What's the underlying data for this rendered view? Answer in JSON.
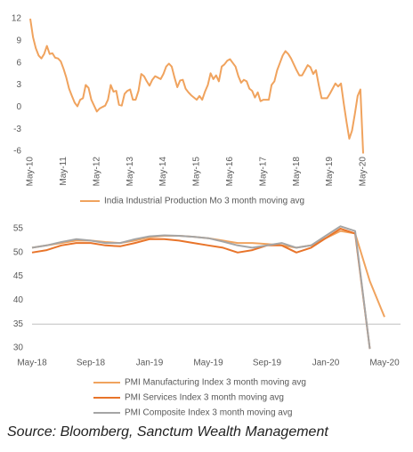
{
  "chart_data": [
    {
      "type": "line",
      "categories": [
        "May-10",
        null,
        null,
        null,
        null,
        null,
        null,
        null,
        null,
        null,
        null,
        null,
        "May-11",
        null,
        null,
        null,
        null,
        null,
        null,
        null,
        null,
        null,
        null,
        null,
        "May-12",
        null,
        null,
        null,
        null,
        null,
        null,
        null,
        null,
        null,
        null,
        null,
        "May-13",
        null,
        null,
        null,
        null,
        null,
        null,
        null,
        null,
        null,
        null,
        null,
        "May-14",
        null,
        null,
        null,
        null,
        null,
        null,
        null,
        null,
        null,
        null,
        null,
        "May-15",
        null,
        null,
        null,
        null,
        null,
        null,
        null,
        null,
        null,
        null,
        null,
        "May-16",
        null,
        null,
        null,
        null,
        null,
        null,
        null,
        null,
        null,
        null,
        null,
        "May-17",
        null,
        null,
        null,
        null,
        null,
        null,
        null,
        null,
        null,
        null,
        null,
        "May-18",
        null,
        null,
        null,
        null,
        null,
        null,
        null,
        null,
        null,
        null,
        null,
        "May-19",
        null,
        null,
        null,
        null,
        null,
        null,
        null,
        null,
        null,
        null,
        null,
        "May-20"
      ],
      "series": [
        {
          "name": "India Industrial Production Mo 3 month moving avg",
          "color": "#f0a35e",
          "values": [
            12,
            9.5,
            8,
            7,
            6.6,
            7.2,
            8.3,
            7.2,
            7.3,
            6.7,
            6.6,
            6.2,
            5.2,
            4,
            2.5,
            1.5,
            0.6,
            0.1,
            1.0,
            1.2,
            3.0,
            2.6,
            1.0,
            0.2,
            -0.6,
            -0.2,
            0,
            0.2,
            1.0,
            3.0,
            2.1,
            2.2,
            0.3,
            0.2,
            1.8,
            2.2,
            2.4,
            1.0,
            1.0,
            2.2,
            4.5,
            4.2,
            3.5,
            2.9,
            3.7,
            4.2,
            4.0,
            3.8,
            4.5,
            5.5,
            5.9,
            5.5,
            4.0,
            2.7,
            3.6,
            3.7,
            2.5,
            2.0,
            1.6,
            1.3,
            1.0,
            1.5,
            1.0,
            2.1,
            3.0,
            4.6,
            3.8,
            4.3,
            3.5,
            5.5,
            5.8,
            6.3,
            6.5,
            6.0,
            5.5,
            4.2,
            3.3,
            3.7,
            3.5,
            2.5,
            2.2,
            1.3,
            2.0,
            0.8,
            1.0,
            1.0,
            1.0,
            3.0,
            3.5,
            5.0,
            6.0,
            7.0,
            7.6,
            7.2,
            6.6,
            5.8,
            5.0,
            4.3,
            4.3,
            5.0,
            5.7,
            5.4,
            4.5,
            5.0,
            3.0,
            1.2,
            1.2,
            1.2,
            1.8,
            2.5,
            3.2,
            2.8,
            3.2,
            0.5,
            -2.0,
            -4.3,
            -3.2,
            -1.0,
            1.5,
            2.4,
            -6.3
          ]
        }
      ],
      "ylim": [
        -6.5,
        12.5
      ],
      "yticks": [
        -6,
        -3,
        0,
        3,
        6,
        9,
        12
      ]
    },
    {
      "type": "line",
      "categories": [
        "May-18",
        null,
        null,
        null,
        "Sep-18",
        null,
        null,
        null,
        "Jan-19",
        null,
        null,
        null,
        "May-19",
        null,
        null,
        null,
        "Sep-19",
        null,
        null,
        null,
        "Jan-20",
        null,
        null,
        null,
        "May-20"
      ],
      "series": [
        {
          "name": "PMI Manufacturing Index 3 month moving avg",
          "color": "#f0a35e",
          "values": [
            51,
            51.5,
            52,
            52.5,
            52.5,
            52.2,
            52,
            52.5,
            53.2,
            53.5,
            53.5,
            53.3,
            53,
            52.5,
            52,
            52,
            51.8,
            51.5,
            51,
            51.5,
            53,
            54.5,
            54,
            44,
            36.5
          ]
        },
        {
          "name": "PMI Services Index 3 month moving avg",
          "color": "#e8742a",
          "values": [
            50,
            50.5,
            51.5,
            52,
            52,
            51.5,
            51.3,
            52,
            52.8,
            52.8,
            52.5,
            52,
            51.5,
            51,
            50,
            50.5,
            51.5,
            51.5,
            50,
            51,
            53,
            55,
            54,
            29.8,
            null
          ]
        },
        {
          "name": "PMI Composite Index 3 month moving avg",
          "color": "#a5a5a5",
          "values": [
            51,
            51.5,
            52.2,
            52.8,
            52.5,
            52,
            52,
            52.8,
            53.4,
            53.6,
            53.5,
            53.3,
            53,
            52.3,
            51.5,
            51,
            51.5,
            52,
            51,
            51.5,
            53.5,
            55.5,
            54.5,
            29.8,
            null
          ]
        }
      ],
      "ylim": [
        29.5,
        57.5
      ],
      "yticks": [
        30,
        35,
        40,
        45,
        50,
        55
      ],
      "reference_line": 35
    }
  ],
  "source": "Source: Bloomberg, Sanctum Wealth Management"
}
